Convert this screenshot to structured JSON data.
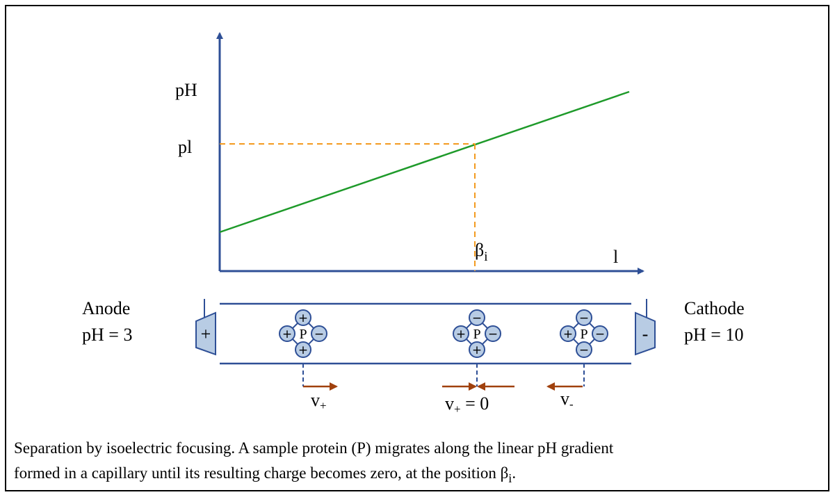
{
  "axes": {
    "y_label": "pH",
    "pi_label": "pl",
    "beta": {
      "base": "β",
      "sub": "i"
    },
    "x_label": "l"
  },
  "anode": {
    "name": "Anode",
    "ph": "pH = 3",
    "sign": "+"
  },
  "cathode": {
    "name": "Cathode",
    "ph": "pH = 10",
    "sign": "-"
  },
  "proteins": [
    {
      "label": "P",
      "top": "+",
      "left": "+",
      "right": "−",
      "bottom": "+"
    },
    {
      "label": "P",
      "top": "−",
      "left": "+",
      "right": "−",
      "bottom": "+"
    },
    {
      "label": "P",
      "top": "−",
      "left": "+",
      "right": "−",
      "bottom": "−"
    }
  ],
  "velocities": [
    {
      "base": "v",
      "sub": "+",
      "rest": ""
    },
    {
      "base": "v",
      "sub": "+",
      "rest": " = 0"
    },
    {
      "base": "v",
      "sub": "-",
      "rest": ""
    }
  ],
  "caption": {
    "line1": "Separation by isoelectric focusing. A sample protein (P) migrates along the linear pH gradient",
    "line2": "formed in a capillary until its resulting charge becomes zero, at the position ",
    "beta": "β",
    "sub": "i",
    "end": "."
  }
}
